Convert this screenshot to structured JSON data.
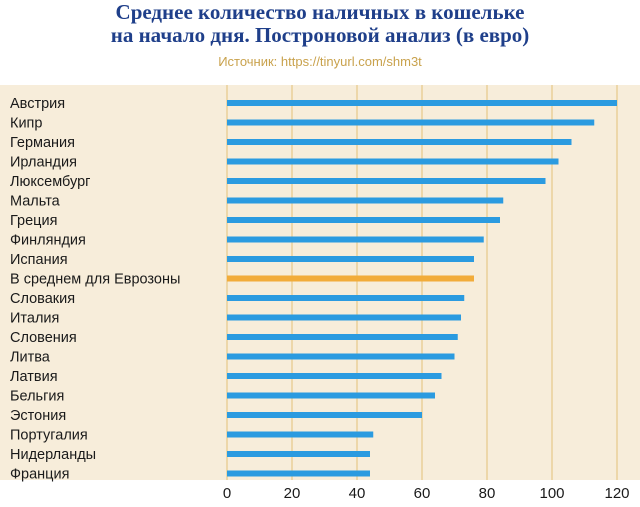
{
  "header": {
    "title_line1": "Среднее количество наличных в кошельке",
    "title_line2": "на начало дня. Построновой анализ (в евро)",
    "source": "Источник: https://tinyurl.com/shm3t"
  },
  "colors": {
    "bar": "#2b9be0",
    "highlight": "#f2ac3a",
    "panel": "#f7edda",
    "grid": "#e3c178",
    "title": "#1f3f8a",
    "source": "#c9a24d"
  },
  "chart_data": {
    "type": "bar",
    "orientation": "horizontal",
    "categories": [
      "Австрия",
      "Кипр",
      "Германия",
      "Ирландия",
      "Люксембург",
      "Мальта",
      "Греция",
      "Финляндия",
      "Испания",
      "В среднем для Еврозоны",
      "Словакия",
      "Италия",
      "Словения",
      "Литва",
      "Латвия",
      "Бельгия",
      "Эстония",
      "Португалия",
      "Нидерланды",
      "Франция"
    ],
    "values": [
      120,
      113,
      106,
      102,
      98,
      85,
      84,
      79,
      76,
      76,
      73,
      72,
      71,
      70,
      66,
      64,
      60,
      45,
      44,
      44
    ],
    "highlight_category": "В среднем для Еврозоны",
    "title": "Среднее количество наличных в кошельке на начало дня. Построновой анализ (в евро)",
    "xlabel": "",
    "ylabel": "",
    "xlim": [
      0,
      120
    ],
    "xticks": [
      0,
      20,
      40,
      60,
      80,
      100,
      120
    ],
    "grid": "vertical"
  }
}
